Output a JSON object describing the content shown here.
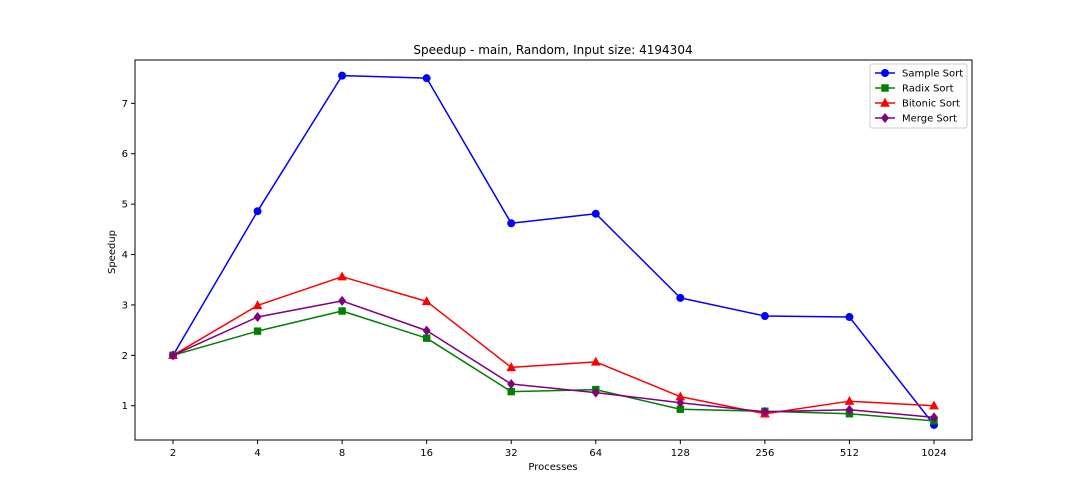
{
  "chart_data": {
    "type": "line",
    "title": "Speedup - main, Random, Input size: 4194304",
    "xlabel": "Processes",
    "ylabel": "Speedup",
    "x_scale": "categorical",
    "categories": [
      "2",
      "4",
      "8",
      "16",
      "32",
      "64",
      "128",
      "256",
      "512",
      "1024"
    ],
    "ylim": [
      0.32,
      7.86
    ],
    "yticks": [
      1,
      2,
      3,
      4,
      5,
      6,
      7
    ],
    "grid": false,
    "legend_position": "top-right",
    "series": [
      {
        "name": "Sample Sort",
        "color": "#0000ff",
        "marker": "circle",
        "values": [
          2.0,
          4.86,
          7.55,
          7.5,
          4.62,
          4.81,
          3.14,
          2.78,
          2.76,
          0.62
        ]
      },
      {
        "name": "Radix Sort",
        "color": "#008000",
        "marker": "square",
        "values": [
          2.0,
          2.48,
          2.88,
          2.34,
          1.28,
          1.32,
          0.93,
          0.89,
          0.84,
          0.7
        ]
      },
      {
        "name": "Bitonic Sort",
        "color": "#ff0000",
        "marker": "triangle",
        "values": [
          2.0,
          2.99,
          3.56,
          3.07,
          1.76,
          1.87,
          1.18,
          0.84,
          1.09,
          1.0
        ]
      },
      {
        "name": "Merge Sort",
        "color": "#800080",
        "marker": "diamond",
        "values": [
          2.0,
          2.76,
          3.08,
          2.49,
          1.43,
          1.26,
          1.06,
          0.88,
          0.92,
          0.77
        ]
      }
    ]
  }
}
